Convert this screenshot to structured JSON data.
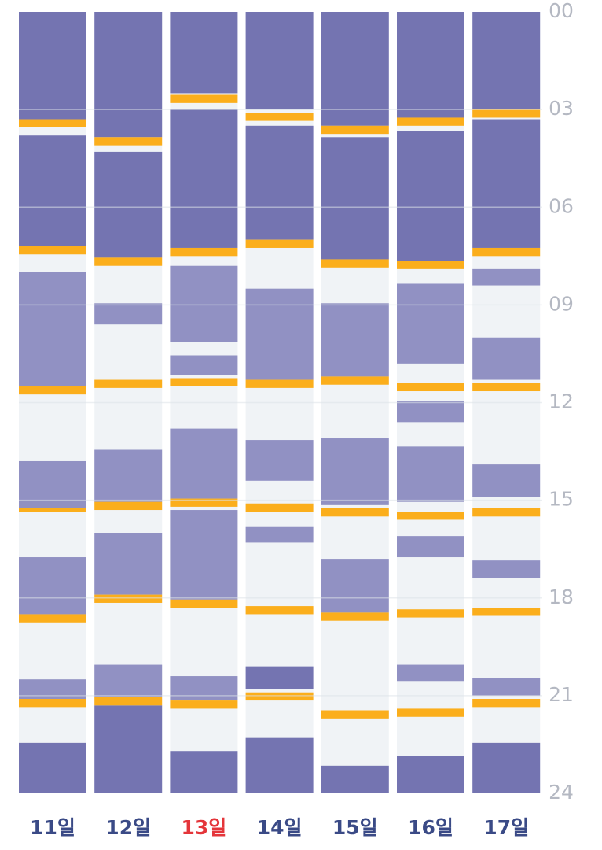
{
  "chart_data": {
    "type": "bar",
    "orientation": "vertical-timeline",
    "ylim": [
      0,
      24
    ],
    "y_ticks": [
      "00",
      "03",
      "06",
      "09",
      "12",
      "15",
      "18",
      "21",
      "24"
    ],
    "grid": true,
    "colors": {
      "night_sleep": "#7474b1",
      "nap": "#9191c3",
      "feeding": "#fbae1c",
      "awake": "#f0f3f6",
      "grid": "#dde2e8",
      "tick_label": "#b4b8c2",
      "day_label": "#3a4a86",
      "today_label": "#e4353a"
    },
    "days": [
      {
        "label": "11일",
        "highlight": false,
        "night": [
          [
            0,
            3.3
          ],
          [
            3.8,
            7.2
          ],
          [
            22.45,
            24
          ]
        ],
        "naps": [
          [
            8.0,
            11.5
          ],
          [
            13.8,
            15.3
          ],
          [
            16.75,
            18.5
          ],
          [
            20.5,
            21.1
          ]
        ],
        "feeds": [
          [
            3.3,
            3.55
          ],
          [
            7.2,
            7.45
          ],
          [
            11.5,
            11.75
          ],
          [
            15.25,
            15.35
          ],
          [
            18.5,
            18.75
          ],
          [
            21.1,
            21.35
          ]
        ]
      },
      {
        "label": "12일",
        "highlight": false,
        "night": [
          [
            0,
            3.85
          ],
          [
            4.3,
            7.55
          ],
          [
            21.3,
            24
          ]
        ],
        "naps": [
          [
            8.95,
            9.6
          ],
          [
            13.45,
            15.05
          ],
          [
            16.0,
            17.9
          ],
          [
            20.05,
            21.05
          ]
        ],
        "feeds": [
          [
            3.85,
            4.1
          ],
          [
            7.55,
            7.8
          ],
          [
            11.3,
            11.55
          ],
          [
            15.05,
            15.3
          ],
          [
            17.9,
            18.15
          ],
          [
            21.05,
            21.3
          ]
        ]
      },
      {
        "label": "13일",
        "highlight": true,
        "night": [
          [
            0,
            2.5
          ],
          [
            3.0,
            7.25
          ],
          [
            22.7,
            24
          ]
        ],
        "naps": [
          [
            7.8,
            10.15
          ],
          [
            10.55,
            11.15
          ],
          [
            12.8,
            14.95
          ],
          [
            15.3,
            18.05
          ],
          [
            20.4,
            21.15
          ]
        ],
        "feeds": [
          [
            2.55,
            2.8
          ],
          [
            7.25,
            7.5
          ],
          [
            11.25,
            11.5
          ],
          [
            14.95,
            15.2
          ],
          [
            18.05,
            18.3
          ],
          [
            21.15,
            21.4
          ]
        ]
      },
      {
        "label": "14일",
        "highlight": false,
        "night": [
          [
            0,
            3.0
          ],
          [
            3.5,
            7.0
          ],
          [
            20.1,
            20.8
          ],
          [
            22.3,
            24
          ]
        ],
        "naps": [
          [
            8.5,
            11.3
          ],
          [
            13.15,
            14.4
          ],
          [
            15.8,
            16.3
          ]
        ],
        "feeds": [
          [
            3.1,
            3.35
          ],
          [
            7.0,
            7.25
          ],
          [
            11.3,
            11.55
          ],
          [
            15.1,
            15.35
          ],
          [
            18.25,
            18.5
          ],
          [
            20.9,
            21.15
          ]
        ]
      },
      {
        "label": "15일",
        "highlight": false,
        "night": [
          [
            0,
            3.5
          ],
          [
            3.85,
            7.6
          ],
          [
            23.15,
            24
          ]
        ],
        "naps": [
          [
            8.95,
            11.2
          ],
          [
            13.1,
            15.15
          ],
          [
            16.8,
            18.45
          ]
        ],
        "feeds": [
          [
            3.5,
            3.75
          ],
          [
            7.6,
            7.85
          ],
          [
            11.2,
            11.45
          ],
          [
            15.25,
            15.5
          ],
          [
            18.45,
            18.7
          ],
          [
            21.45,
            21.7
          ]
        ]
      },
      {
        "label": "16일",
        "highlight": false,
        "night": [
          [
            0,
            3.25
          ],
          [
            3.65,
            7.65
          ],
          [
            22.85,
            24
          ]
        ],
        "naps": [
          [
            8.35,
            10.8
          ],
          [
            11.95,
            12.6
          ],
          [
            13.35,
            15.05
          ],
          [
            16.1,
            16.75
          ],
          [
            20.05,
            20.55
          ]
        ],
        "feeds": [
          [
            3.25,
            3.5
          ],
          [
            7.65,
            7.9
          ],
          [
            11.4,
            11.65
          ],
          [
            15.35,
            15.6
          ],
          [
            18.35,
            18.6
          ],
          [
            21.4,
            21.65
          ]
        ]
      },
      {
        "label": "17일",
        "highlight": false,
        "night": [
          [
            0,
            3.0
          ],
          [
            3.3,
            7.25
          ],
          [
            22.45,
            24
          ]
        ],
        "naps": [
          [
            7.9,
            8.4
          ],
          [
            10.0,
            11.3
          ],
          [
            13.9,
            14.9
          ],
          [
            16.85,
            17.4
          ],
          [
            20.45,
            21.0
          ]
        ],
        "feeds": [
          [
            3.0,
            3.25
          ],
          [
            7.25,
            7.5
          ],
          [
            11.4,
            11.65
          ],
          [
            15.25,
            15.5
          ],
          [
            18.3,
            18.55
          ],
          [
            21.1,
            21.35
          ]
        ]
      }
    ]
  }
}
